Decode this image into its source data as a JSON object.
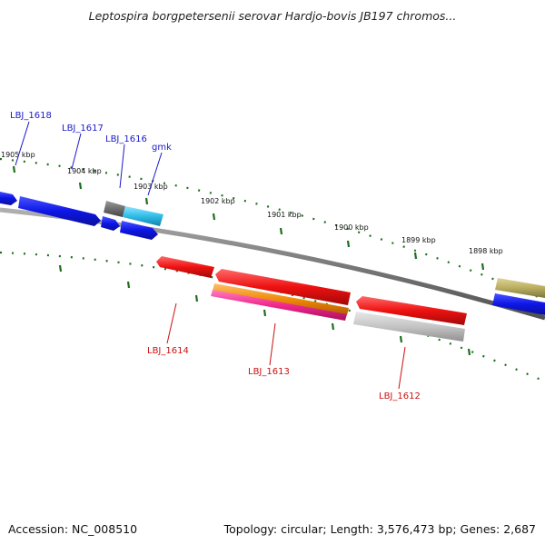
{
  "title": "Leptospira borgpetersenii serovar Hardjo-bovis JB197 chromos...",
  "footer": {
    "accession": "Accession: NC_008510",
    "summary": "Topology: circular; Length: 3,576,473 bp; Genes: 2,687"
  },
  "ruler_labels": [
    "1905 kbp",
    "1904 kbp",
    "1903 kbp",
    "1902 kbp",
    "1901 kbp",
    "1900 kbp",
    "1899 kbp",
    "1898 kbp"
  ],
  "forward_genes": [
    {
      "name": "LBJ_1618"
    },
    {
      "name": "LBJ_1617"
    },
    {
      "name": "LBJ_1616"
    },
    {
      "name": "gmk"
    }
  ],
  "reverse_genes": [
    {
      "name": "LBJ_1614"
    },
    {
      "name": "LBJ_1613"
    },
    {
      "name": "LBJ_1612"
    }
  ],
  "colors": {
    "forward_label": "#1a1acc",
    "reverse_label": "#cc1111",
    "tick": "#1e6e1e",
    "backbone": "#7a7a7a",
    "forward_gene": "#0d16e6",
    "reverse_gene": "#ee1111",
    "gmk_gene": "#2fbde8",
    "grey_gene": "#6e6e6e",
    "orange_gene": "#f08a0a",
    "pink_gene": "#f0288c",
    "light_grey_gene": "#c4c4c4",
    "olive_gene": "#b9ae5e"
  }
}
